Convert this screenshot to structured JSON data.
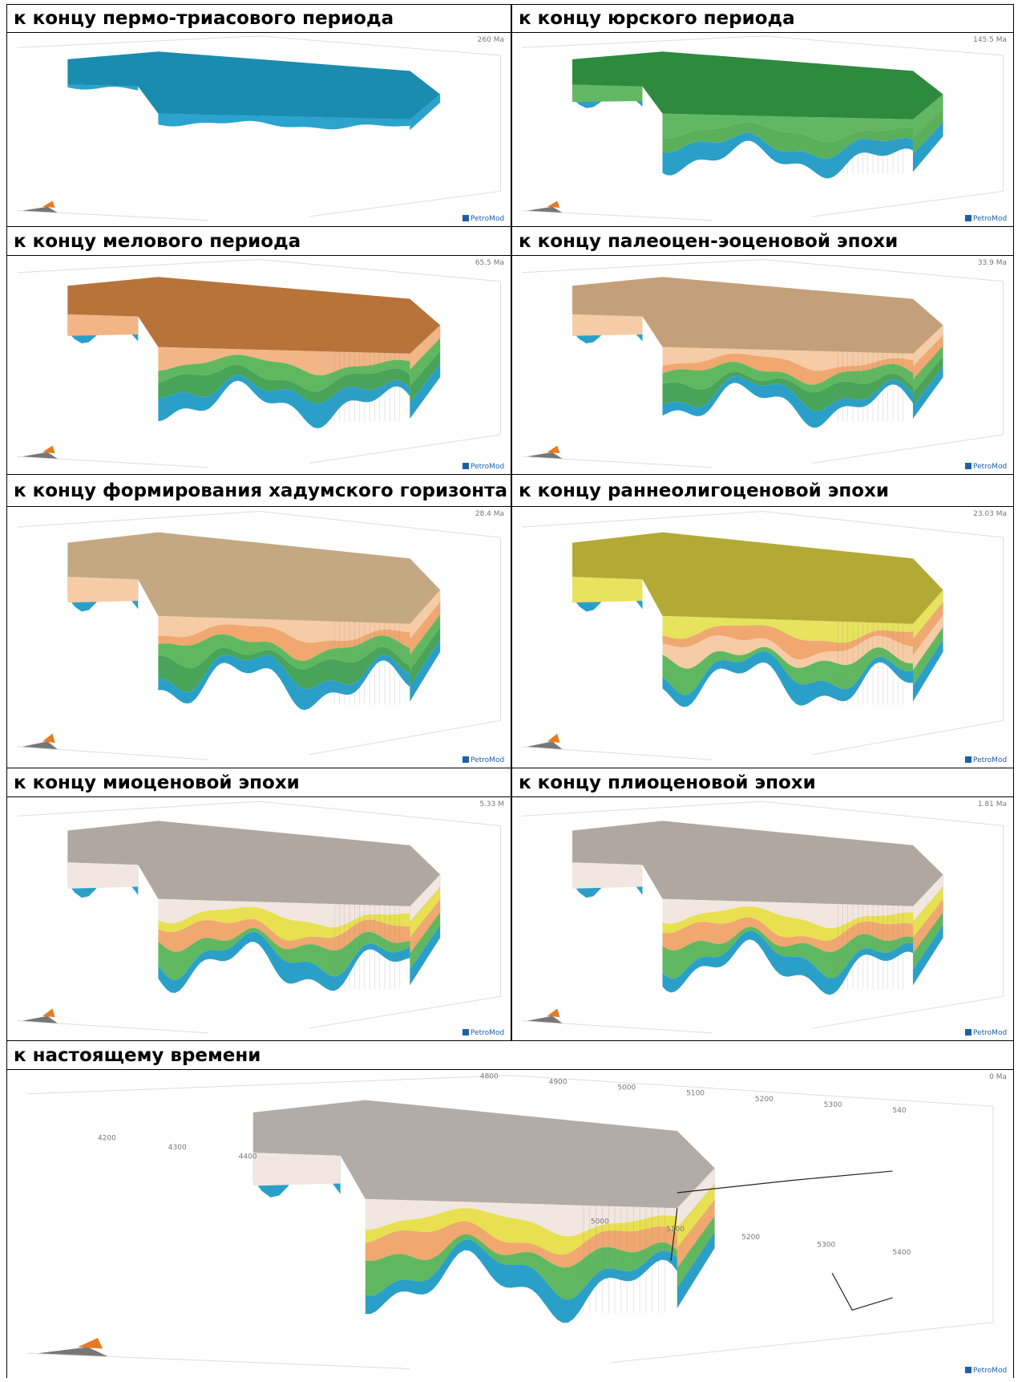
{
  "panels": [
    {
      "title": "к концу пермо-триасового периода",
      "age": "260 Ma"
    },
    {
      "title": "к концу юрского периода",
      "age": "145.5 Ma"
    },
    {
      "title": "к концу мелового периода",
      "age": "65.5 Ma"
    },
    {
      "title": "к концу палеоцен-эоценовой эпохи",
      "age": "33.9 Ma"
    },
    {
      "title": "к концу формирования хадумского горизонта",
      "age": "28.4 Ma"
    },
    {
      "title": "к концу раннеолигоценовой эпохи",
      "age": "23.03 Ma"
    },
    {
      "title": "к концу миоценовой эпохи",
      "age": "5.33 M"
    },
    {
      "title": "к концу плиоценовой эпохи",
      "age": "1.81 Ma"
    },
    {
      "title": "к настоящему времени",
      "age": "0 Ma"
    }
  ],
  "logo": "PetroMod",
  "axis_labels": {
    "top": [
      "4800",
      "4900",
      "5000",
      "5100",
      "5200",
      "5300",
      "540"
    ],
    "left": [
      "4200",
      "4300",
      "4400"
    ],
    "bottom": [
      "5000",
      "5100",
      "5200",
      "5300",
      "5400"
    ]
  }
}
